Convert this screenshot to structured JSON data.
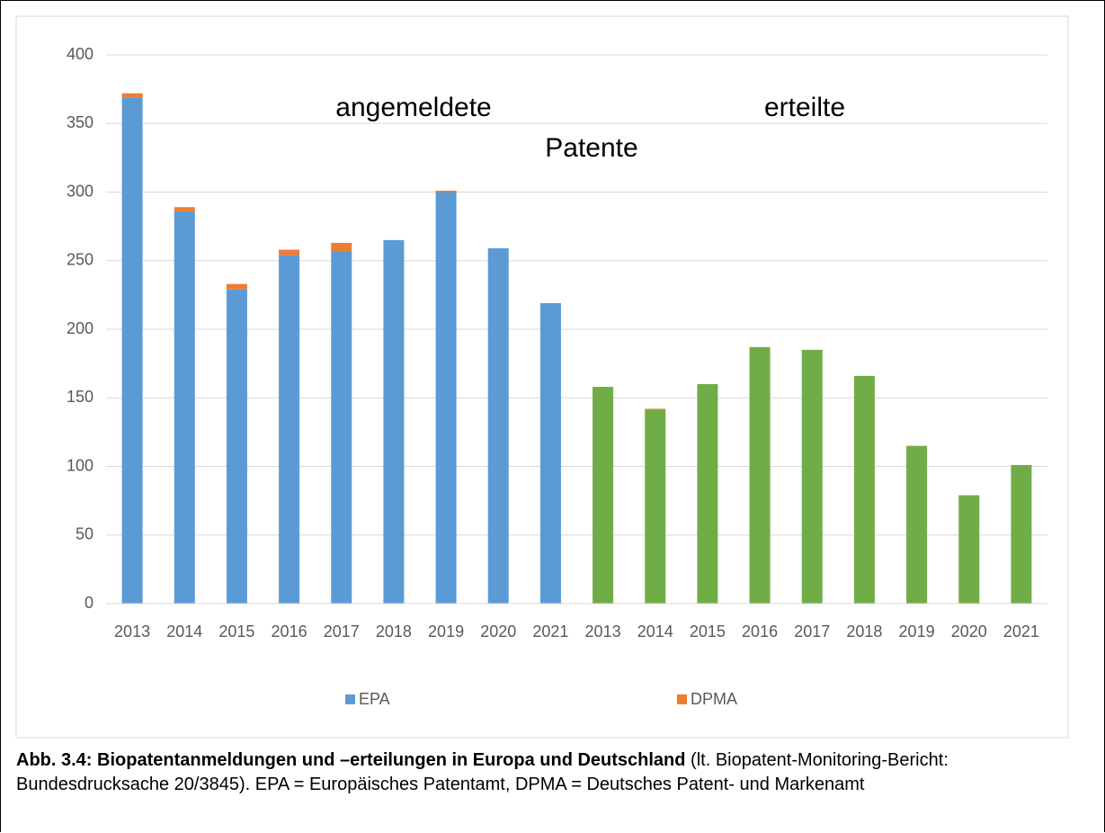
{
  "chart_data": {
    "type": "bar",
    "stacked": true,
    "annotations": [
      "angemeldete",
      "erteilte",
      "Patente"
    ],
    "categories": [
      "2013",
      "2014",
      "2015",
      "2016",
      "2017",
      "2018",
      "2019",
      "2020",
      "2021",
      "2013",
      "2014",
      "2015",
      "2016",
      "2017",
      "2018",
      "2019",
      "2020",
      "2021"
    ],
    "series": [
      {
        "name": "EPA",
        "color": "#5b9bd5",
        "colors": [
          "#5b9bd5",
          "#5b9bd5",
          "#5b9bd5",
          "#5b9bd5",
          "#5b9bd5",
          "#5b9bd5",
          "#5b9bd5",
          "#5b9bd5",
          "#5b9bd5",
          "#70ad47",
          "#70ad47",
          "#70ad47",
          "#70ad47",
          "#70ad47",
          "#70ad47",
          "#70ad47",
          "#70ad47",
          "#70ad47"
        ],
        "values": [
          369,
          286,
          229,
          254,
          257,
          265,
          300,
          259,
          219,
          158,
          141,
          160,
          187,
          185,
          166,
          115,
          79,
          101
        ]
      },
      {
        "name": "DPMA",
        "color": "#ed7d31",
        "values": [
          3,
          3,
          4,
          4,
          6,
          0,
          1,
          0,
          0,
          0,
          1,
          0,
          0,
          0,
          0,
          0,
          0,
          0
        ]
      }
    ],
    "ylim": [
      0,
      400
    ],
    "yticks": [
      0,
      50,
      100,
      150,
      200,
      250,
      300,
      350,
      400
    ],
    "grid": true,
    "legend": "bottom"
  },
  "caption": {
    "bold": "Abb. 3.4: Biopatentanmeldungen und –erteilungen in Europa und Deutschland",
    "text": "(lt. Biopatent-Monitoring-Bericht: Bundesdrucksache 20/3845). EPA = Europäisches Patentamt, DPMA = Deutsches Patent- und Markenamt"
  }
}
